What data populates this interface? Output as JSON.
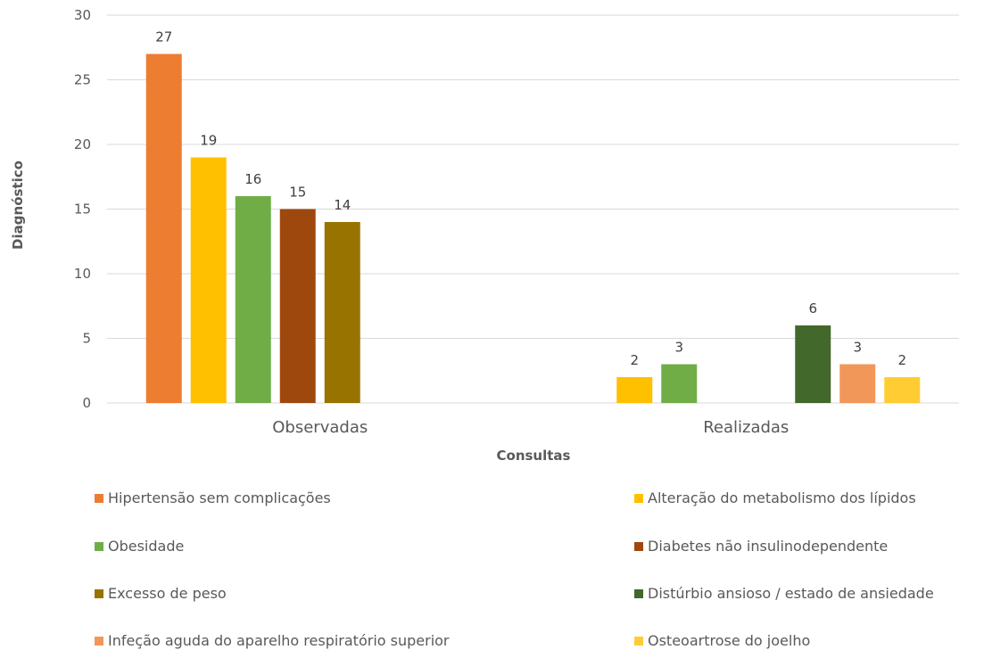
{
  "chart_data": {
    "type": "bar",
    "title": "",
    "xlabel": "Consultas",
    "ylabel": "Diagnóstico",
    "categories": [
      "Observadas",
      "Realizadas"
    ],
    "ylim": [
      0,
      30
    ],
    "yticks": [
      0,
      5,
      10,
      15,
      20,
      25,
      30
    ],
    "grid": true,
    "legend_position": "bottom",
    "series": [
      {
        "name": "Hipertensão sem complicações",
        "color": "#ED7D31",
        "values": [
          27,
          null
        ]
      },
      {
        "name": "Alteração do metabolismo dos lípidos",
        "color": "#FFC000",
        "values": [
          19,
          2
        ]
      },
      {
        "name": "Obesidade",
        "color": "#70AD47",
        "values": [
          16,
          3
        ]
      },
      {
        "name": "Diabetes não insulinodependente",
        "color": "#9E480E",
        "values": [
          15,
          null
        ]
      },
      {
        "name": "Excesso de peso",
        "color": "#997300",
        "values": [
          14,
          null
        ]
      },
      {
        "name": "Distúrbio ansioso / estado de ansiedade",
        "color": "#43682B",
        "values": [
          null,
          6
        ]
      },
      {
        "name": "Infeção aguda do aparelho respiratório superior",
        "color": "#F1975A",
        "values": [
          null,
          3
        ]
      },
      {
        "name": "Osteoartrose do joelho",
        "color": "#FFCD33",
        "values": [
          null,
          2
        ]
      }
    ]
  }
}
